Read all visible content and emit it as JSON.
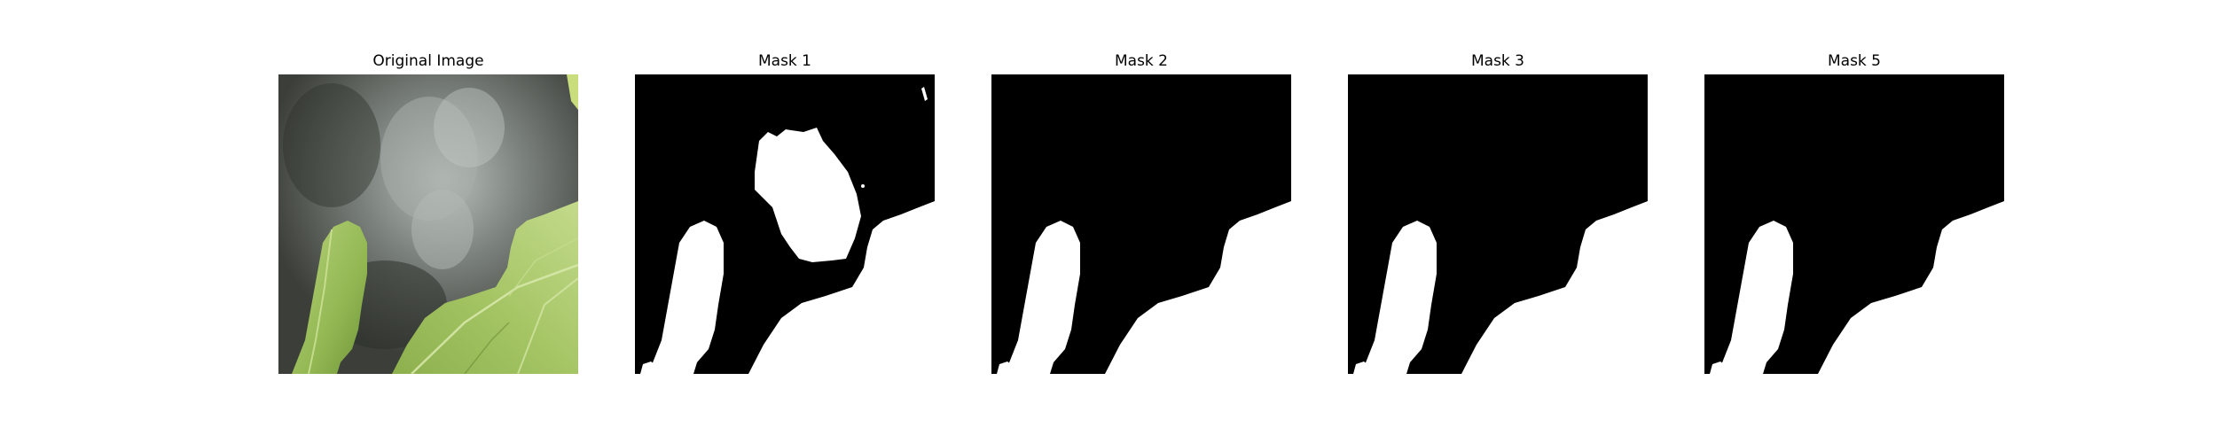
{
  "figure": {
    "panels": [
      {
        "title": "Original Image",
        "kind": "photo"
      },
      {
        "title": "Mask 1",
        "kind": "mask"
      },
      {
        "title": "Mask 2",
        "kind": "mask"
      },
      {
        "title": "Mask 3",
        "kind": "mask"
      },
      {
        "title": "Mask 5",
        "kind": "mask"
      }
    ]
  },
  "colors": {
    "background": "#ffffff",
    "mask_background": "#000000",
    "mask_foreground": "#ffffff",
    "leaf_light": "#a9c86a",
    "leaf_dark": "#7fa344",
    "rock_dark": "#3a3d38",
    "rock_light": "#c8cdc9"
  }
}
